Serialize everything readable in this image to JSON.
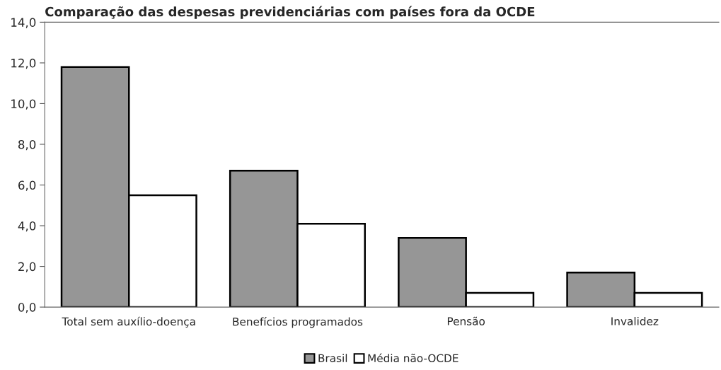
{
  "chart_data": {
    "type": "bar",
    "title": "Comparação das despesas previdenciárias com países fora da OCDE",
    "categories": [
      "Total sem auxílio-doença",
      "Benefícios programados",
      "Pensão",
      "Invalidez"
    ],
    "series": [
      {
        "name": "Brasil",
        "color": "#969696",
        "values": [
          11.8,
          6.7,
          3.4,
          1.7
        ]
      },
      {
        "name": "Média não-OCDE",
        "color": "#ffffff",
        "values": [
          5.5,
          4.1,
          0.7,
          0.7
        ]
      }
    ],
    "ylim": [
      0,
      14
    ],
    "yticks": [
      {
        "value": 0,
        "label": "0,0"
      },
      {
        "value": 2,
        "label": "2,0"
      },
      {
        "value": 4,
        "label": "4,0"
      },
      {
        "value": 6,
        "label": "6,0"
      },
      {
        "value": 8,
        "label": "8,0"
      },
      {
        "value": 10,
        "label": "10,0"
      },
      {
        "value": 12,
        "label": "12,0"
      },
      {
        "value": 14,
        "label": "14,0"
      }
    ],
    "grid": false,
    "legend": "bottom"
  }
}
